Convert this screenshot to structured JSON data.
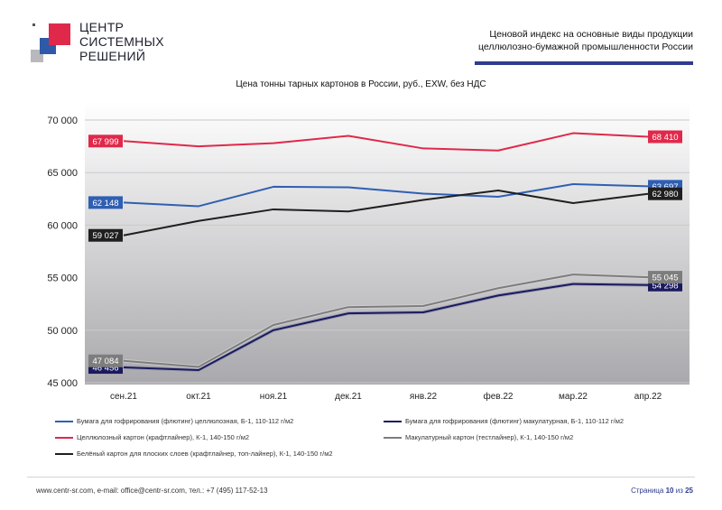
{
  "logo": {
    "lines": [
      "ЦЕНТР",
      "СИСТЕМНЫХ",
      "РЕШЕНИЙ"
    ],
    "colors": {
      "red": "#e0294a",
      "blue": "#2e5aa8",
      "grey": "#b8b8bd"
    }
  },
  "header": {
    "title_lines": [
      "Ценовой индекс на основные виды продукции",
      "целлюлозно-бумажной промышленности России"
    ],
    "accent_color": "#2e3b8f"
  },
  "chart_data": {
    "type": "line",
    "title": "Цена тонны тарных картонов в России, руб., EXW, без НДС",
    "categories": [
      "сен.21",
      "окт.21",
      "ноя.21",
      "дек.21",
      "янв.22",
      "фев.22",
      "мар.22",
      "апр.22"
    ],
    "ylim": [
      45000,
      70000
    ],
    "yticks": [
      45000,
      50000,
      55000,
      60000,
      65000,
      70000
    ],
    "ytick_labels": [
      "45 000",
      "50 000",
      "55 000",
      "60 000",
      "65 000",
      "70 000"
    ],
    "grid": true,
    "legend_position": "bottom",
    "series": [
      {
        "name": "Бумага для гофрирования (флютинг) целлюлозная, Б-1, 110-112 г/м2",
        "color": "#2f5fb3",
        "values": [
          62148,
          61800,
          63650,
          63600,
          63000,
          62700,
          63900,
          63697
        ],
        "first_label": "62 148",
        "last_label": "63 697"
      },
      {
        "name": "Бумага для гофрирования (флютинг) макулатурная, Б-1, 110-112 г/м2",
        "color": "#1a1a5e",
        "values": [
          46456,
          46200,
          50000,
          51600,
          51700,
          53300,
          54400,
          54298
        ],
        "first_label": "46 456",
        "last_label": "54 298"
      },
      {
        "name": "Целлюлозный картон (крафтлайнер), К-1, 140-150 г/м2",
        "color": "#e0294a",
        "values": [
          67999,
          67500,
          67800,
          68500,
          67300,
          67100,
          68750,
          68410
        ],
        "first_label": "67 999",
        "last_label": "68 410"
      },
      {
        "name": "Макулатурный картон (тестлайнер), К-1, 140-150 г/м2",
        "color": "#7d7d7d",
        "values": [
          47084,
          46500,
          50500,
          52200,
          52300,
          54000,
          55300,
          55045
        ],
        "first_label": "47 084",
        "last_label": "55 045"
      },
      {
        "name": "Белёный картон для плоских слоев (крафтлайнер, топ-лайнер), К-1, 140-150 г/м2",
        "color": "#1f1f1f",
        "values": [
          59027,
          60400,
          61500,
          61300,
          62400,
          63300,
          62100,
          62980
        ],
        "first_label": "59 027",
        "last_label": "62 980"
      }
    ]
  },
  "footer": {
    "contacts": "www.centr-sr.com, e-mail: office@centr-sr.com, тел.: +7 (495) 117-52-13",
    "page_word": "Страница",
    "page_current": "10",
    "page_of": "из",
    "page_total": "25"
  }
}
